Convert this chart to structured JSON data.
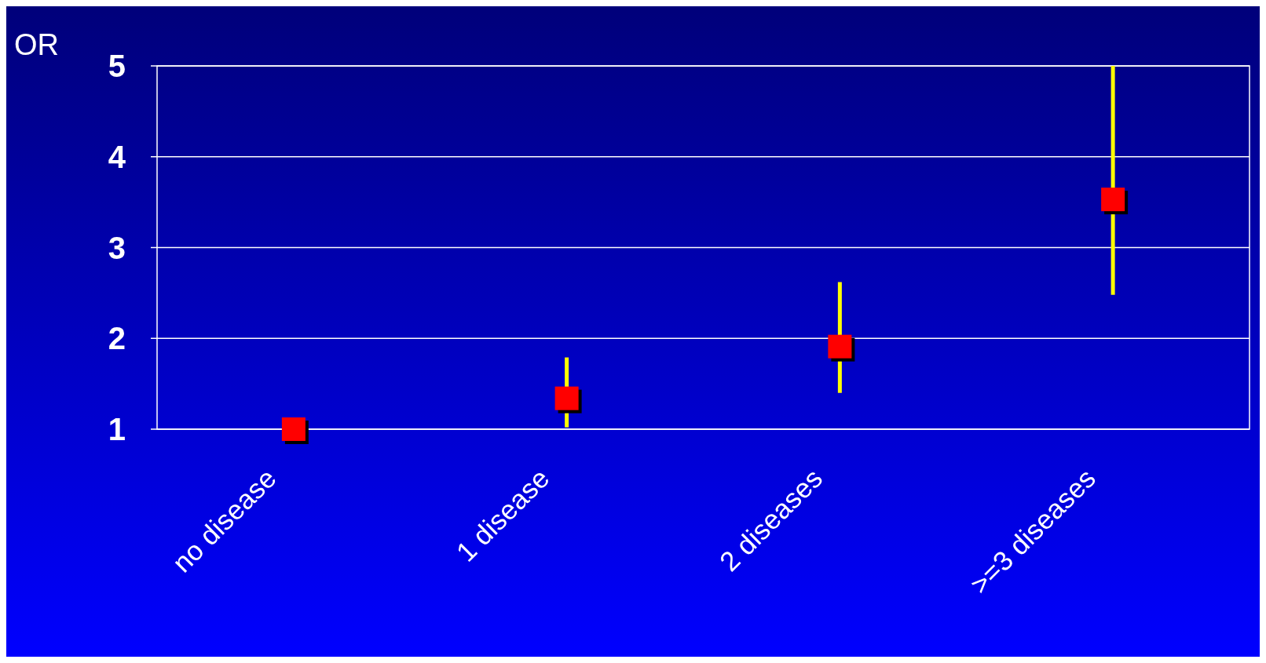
{
  "chart_data": {
    "type": "scatter",
    "ylabel": "OR",
    "categories": [
      "no disease",
      "1 disease",
      "2 diseases",
      ">=3 diseases"
    ],
    "series": [
      {
        "color": "#ff0000",
        "values": [
          1.0,
          1.34,
          1.91,
          3.53
        ],
        "errors": [
          null,
          [
            1.02,
            1.79
          ],
          [
            1.4,
            2.62
          ],
          [
            2.48,
            5.0
          ]
        ]
      }
    ],
    "ylim": [
      1,
      5
    ],
    "yticks": [
      1,
      2,
      3,
      4,
      5
    ],
    "grid": "y",
    "marker": "square"
  }
}
